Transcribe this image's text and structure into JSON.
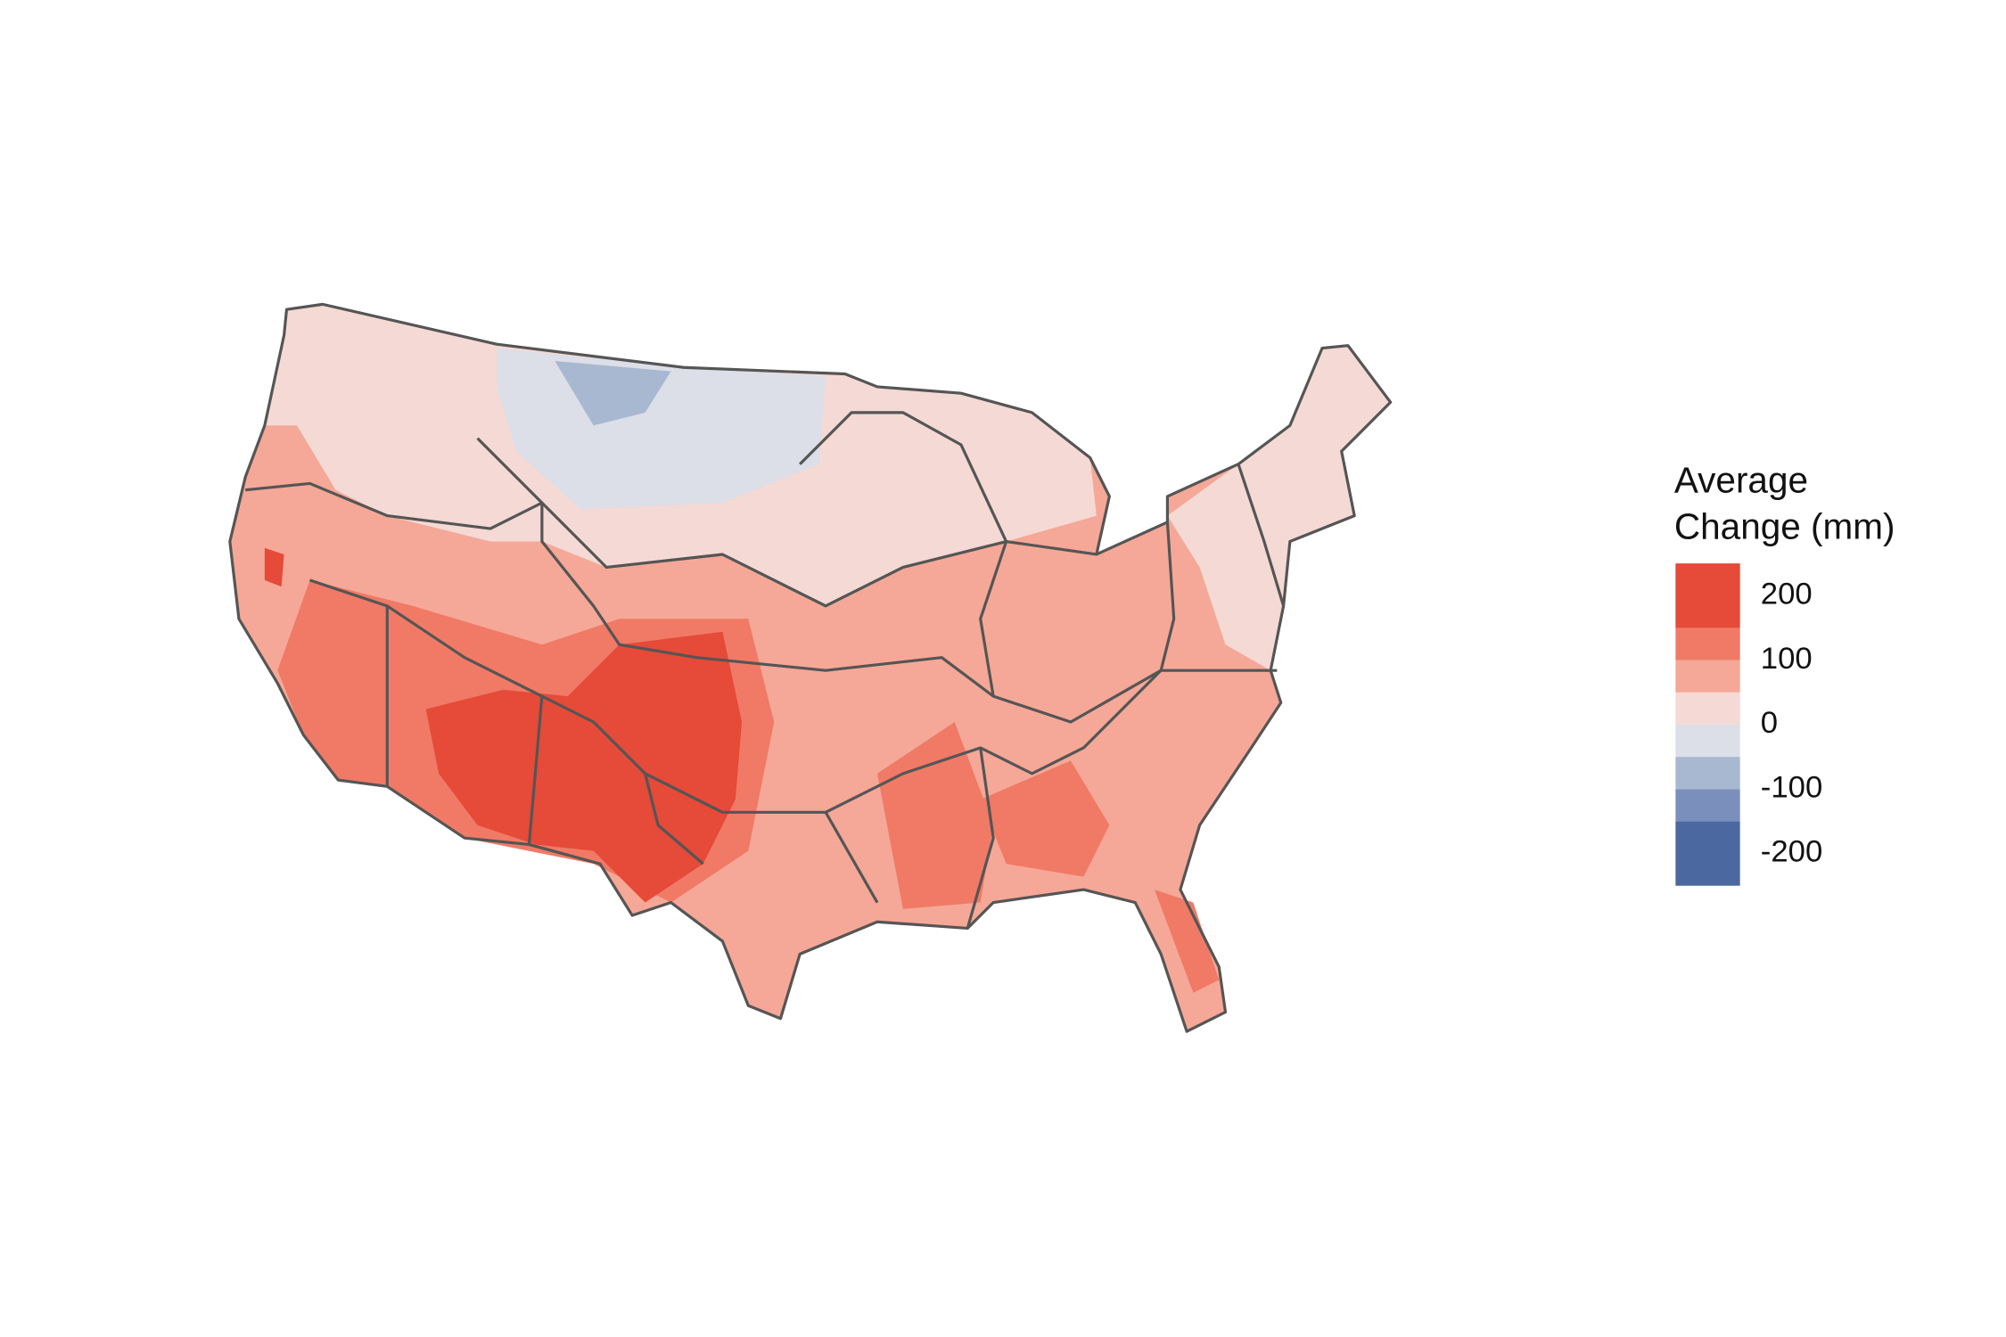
{
  "legend": {
    "title": [
      "Average",
      "Change (mm)"
    ],
    "lim": [
      -250,
      250
    ],
    "ticks": [
      200,
      100,
      0,
      -100,
      -200
    ],
    "bins": [
      -250,
      -150,
      -100,
      -50,
      0,
      50,
      100,
      150,
      250
    ],
    "colors": [
      "#4b69a0",
      "#7b8fbc",
      "#a8b8d1",
      "#dcdee8",
      "#f5d9d4",
      "#f5a897",
      "#f07a66",
      "#e64a38"
    ]
  }
}
